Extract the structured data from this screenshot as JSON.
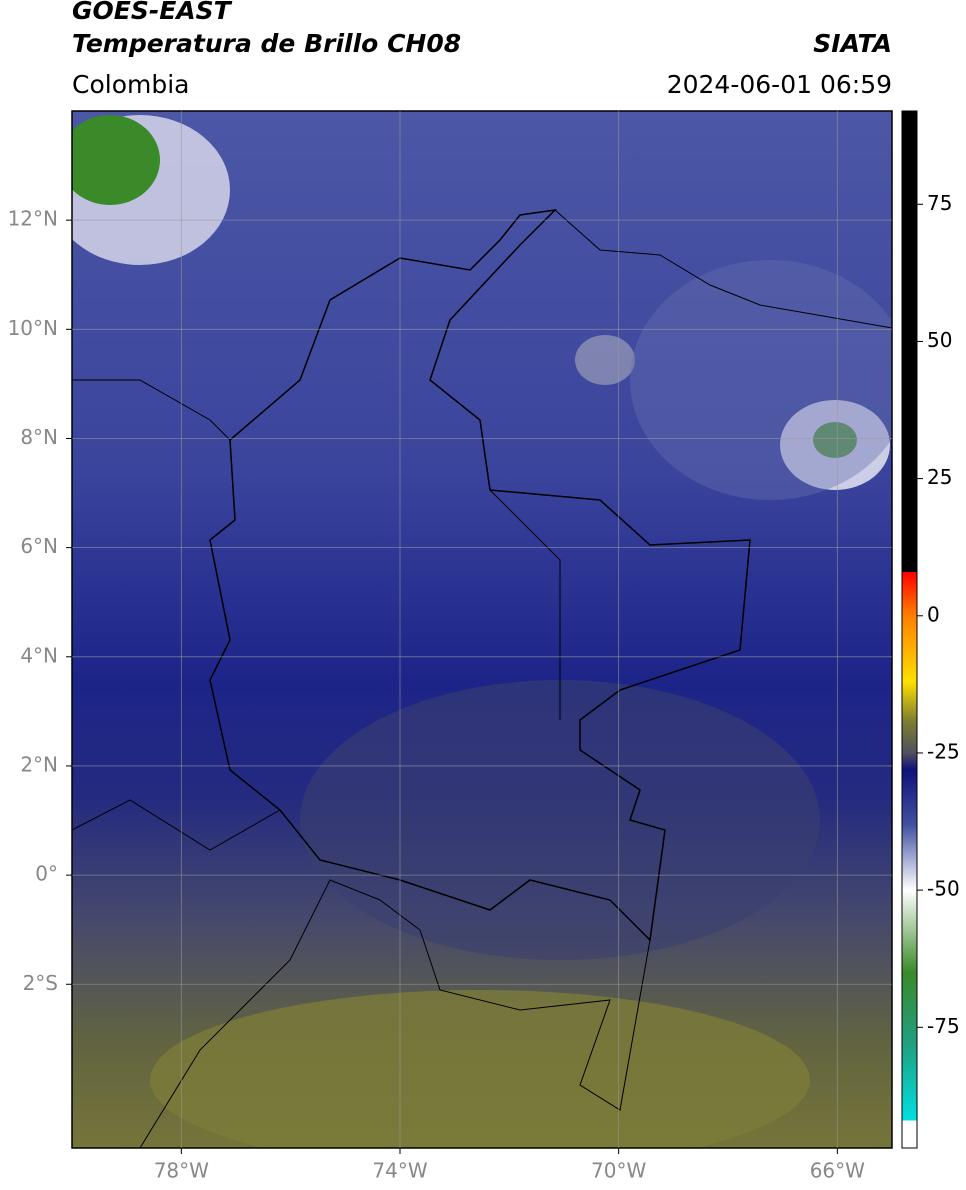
{
  "header": {
    "title": "GOES-EAST",
    "subtitle": "Temperatura de Brillo CH08",
    "region": "Colombia",
    "source": "SIATA",
    "datetime": "2024-06-01 06:59"
  },
  "map": {
    "xlim": [
      -80,
      -65
    ],
    "ylim": [
      -5,
      14
    ],
    "grid": true,
    "xticks": [
      {
        "value": -78,
        "label": "78°W"
      },
      {
        "value": -74,
        "label": "74°W"
      },
      {
        "value": -70,
        "label": "70°W"
      },
      {
        "value": -66,
        "label": "66°W"
      }
    ],
    "yticks": [
      {
        "value": 12,
        "label": "12°N"
      },
      {
        "value": 10,
        "label": "10°N"
      },
      {
        "value": 8,
        "label": "8°N"
      },
      {
        "value": 6,
        "label": "6°N"
      },
      {
        "value": 4,
        "label": "4°N"
      },
      {
        "value": 2,
        "label": "2°N"
      },
      {
        "value": 0,
        "label": "0°"
      },
      {
        "value": -2,
        "label": "2°S"
      }
    ]
  },
  "colorbar": {
    "clim": [
      -97,
      92
    ],
    "ticks": [
      75,
      50,
      25,
      0,
      -25,
      -50,
      -75
    ],
    "colormap": [
      {
        "value": 92,
        "color": "#000000"
      },
      {
        "value": 8,
        "color": "#000000"
      },
      {
        "value": 8,
        "color": "#ff0000"
      },
      {
        "value": 0,
        "color": "#ff8000"
      },
      {
        "value": -12,
        "color": "#ffe000"
      },
      {
        "value": -19,
        "color": "#808030"
      },
      {
        "value": -25,
        "color": "#505060"
      },
      {
        "value": -28,
        "color": "#10107a"
      },
      {
        "value": -38,
        "color": "#4050a0"
      },
      {
        "value": -50,
        "color": "#ffffff"
      },
      {
        "value": -65,
        "color": "#3a8a2a"
      },
      {
        "value": -78,
        "color": "#20a080"
      },
      {
        "value": -92,
        "color": "#00e0e0"
      },
      {
        "value": -92,
        "color": "#ffffff"
      },
      {
        "value": -97,
        "color": "#ffffff"
      }
    ]
  }
}
